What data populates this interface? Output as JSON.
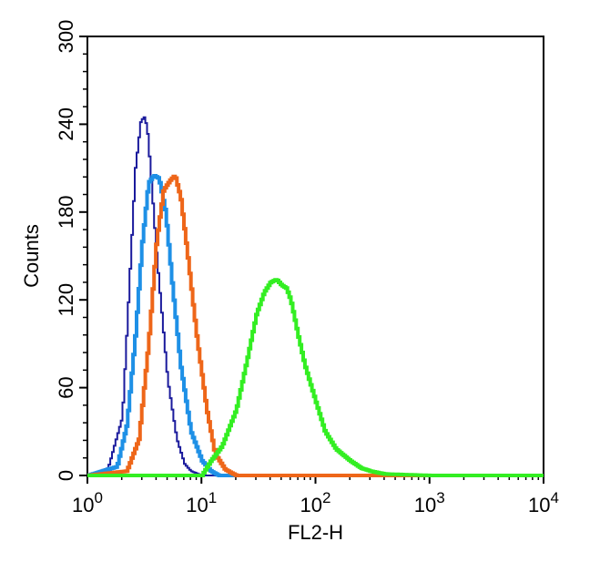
{
  "chart_data": {
    "type": "line",
    "title": "",
    "xlabel": "FL2-H",
    "ylabel": "Counts",
    "x_scale": "log",
    "xlim": [
      1,
      10000
    ],
    "ylim": [
      0,
      300
    ],
    "grid": false,
    "x_ticks": [
      {
        "value": 1,
        "base": "10",
        "exp": "0"
      },
      {
        "value": 10,
        "base": "10",
        "exp": "1"
      },
      {
        "value": 100,
        "base": "10",
        "exp": "2"
      },
      {
        "value": 1000,
        "base": "10",
        "exp": "3"
      },
      {
        "value": 10000,
        "base": "10",
        "exp": "4"
      }
    ],
    "y_ticks": [
      0,
      60,
      120,
      180,
      240,
      300
    ],
    "series": [
      {
        "color": "#1a1a9c",
        "x": [
          1,
          1.5,
          2,
          2.3,
          2.6,
          2.9,
          3.1,
          3.3,
          3.6,
          4,
          4.5,
          5,
          6,
          7,
          8,
          10,
          1000,
          10000
        ],
        "y": [
          0,
          5,
          40,
          130,
          210,
          242,
          245,
          238,
          200,
          150,
          105,
          65,
          25,
          8,
          3,
          0,
          0,
          0
        ]
      },
      {
        "color": "#1e90e6",
        "x": [
          1,
          1.8,
          2.2,
          2.6,
          3,
          3.4,
          3.8,
          4.2,
          4.8,
          5.5,
          6.5,
          8,
          10,
          12,
          14,
          1000,
          10000
        ],
        "y": [
          0,
          6,
          35,
          95,
          160,
          200,
          205,
          203,
          180,
          130,
          75,
          30,
          10,
          3,
          0,
          0,
          0
        ]
      },
      {
        "color": "#ee6619",
        "x": [
          1,
          2.2,
          2.8,
          3.4,
          4,
          4.6,
          5.3,
          5.8,
          6.5,
          7.5,
          9,
          11,
          13,
          16,
          20,
          1000,
          10000
        ],
        "y": [
          0,
          3,
          25,
          90,
          160,
          195,
          202,
          205,
          190,
          150,
          95,
          45,
          15,
          4,
          0,
          0,
          0
        ]
      },
      {
        "color": "#33ee22",
        "x": [
          1,
          10,
          12,
          15,
          20,
          25,
          30,
          35,
          40,
          45,
          50,
          55,
          60,
          70,
          80,
          100,
          120,
          150,
          200,
          250,
          300,
          400,
          1000,
          10000
        ],
        "y": [
          0,
          0,
          10,
          20,
          45,
          80,
          110,
          125,
          132,
          134,
          130,
          128,
          120,
          95,
          75,
          50,
          30,
          18,
          10,
          5,
          3,
          1,
          0,
          0
        ]
      }
    ]
  }
}
